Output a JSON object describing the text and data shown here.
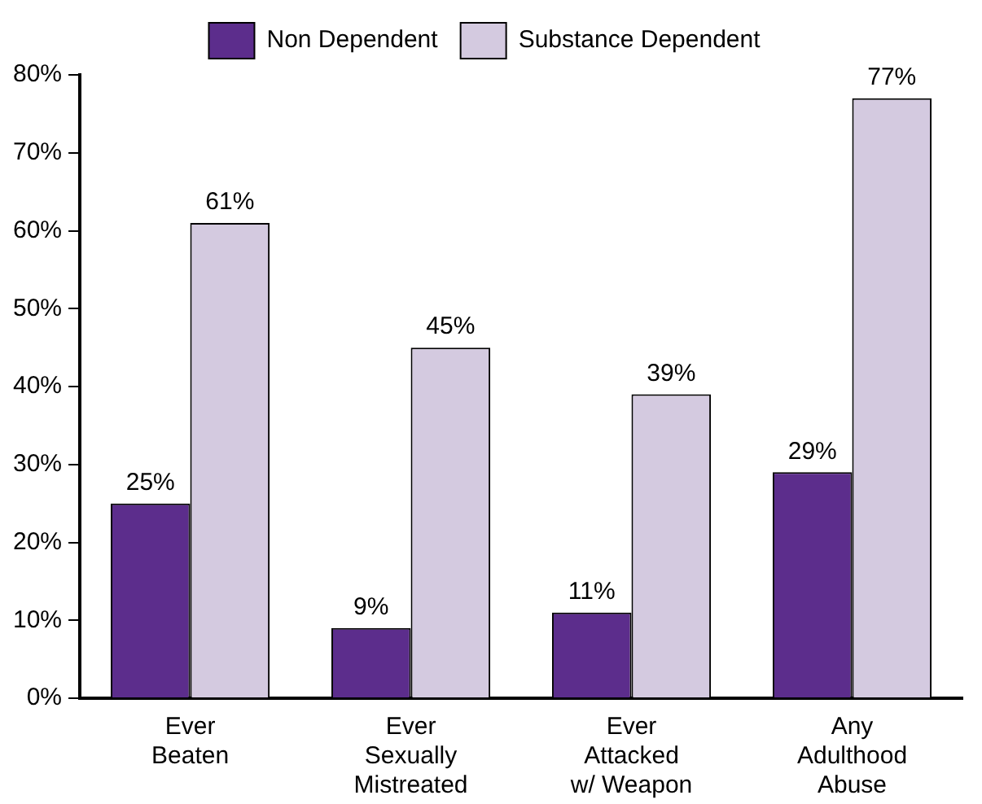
{
  "chart_data": {
    "type": "bar",
    "categories": [
      "Ever\nBeaten",
      "Ever\nSexually\nMistreated",
      "Ever\nAttacked\nw/ Weapon",
      "Any\nAdulthood\nAbuse"
    ],
    "series": [
      {
        "name": "Non Dependent",
        "color": "#5c2d8c",
        "values": [
          25,
          9,
          11,
          29
        ],
        "value_labels": [
          "25%",
          "9%",
          "11%",
          "29%"
        ]
      },
      {
        "name": "Substance Dependent",
        "color": "#d4cae0",
        "values": [
          61,
          45,
          39,
          77
        ],
        "value_labels": [
          "61%",
          "45%",
          "39%",
          "77%"
        ]
      }
    ],
    "ylim": [
      0,
      80
    ],
    "yticks": [
      {
        "value": 0,
        "label": "0%"
      },
      {
        "value": 10,
        "label": "10%"
      },
      {
        "value": 20,
        "label": "20%"
      },
      {
        "value": 30,
        "label": "30%"
      },
      {
        "value": 40,
        "label": "40%"
      },
      {
        "value": 50,
        "label": "50%"
      },
      {
        "value": 60,
        "label": "60%"
      },
      {
        "value": 70,
        "label": "70%"
      },
      {
        "value": 80,
        "label": "80%"
      }
    ],
    "grid": false,
    "legend": "top"
  }
}
